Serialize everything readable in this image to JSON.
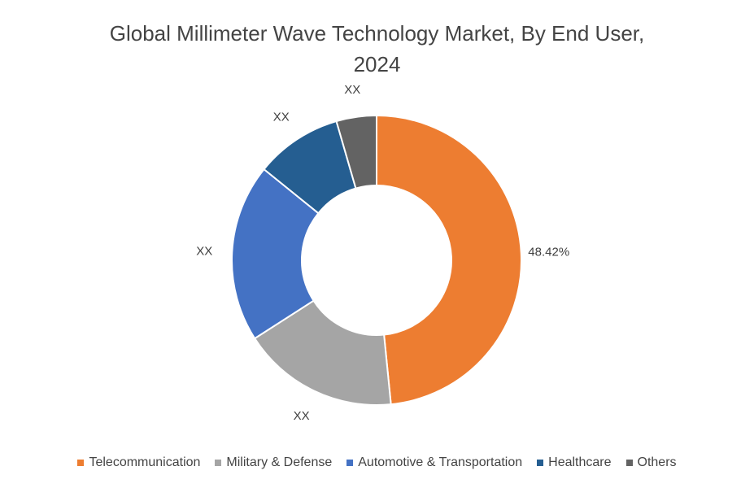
{
  "chart_data": {
    "type": "pie",
    "variant": "donut",
    "title_line1": "Global Millimeter Wave Technology Market, By End User,",
    "title_line2": "2024",
    "categories": [
      "Telecommunication",
      "Military & Defense",
      "Automotive & Transportation",
      "Healthcare",
      "Others"
    ],
    "values": [
      48.42,
      17.5,
      19.9,
      9.7,
      4.48
    ],
    "data_labels": [
      "48.42%",
      "XX",
      "XX",
      "XX",
      "XX"
    ],
    "colors": [
      "#ED7D31",
      "#A5A5A5",
      "#4472C4",
      "#255E91",
      "#636363"
    ],
    "legend_position": "bottom"
  }
}
